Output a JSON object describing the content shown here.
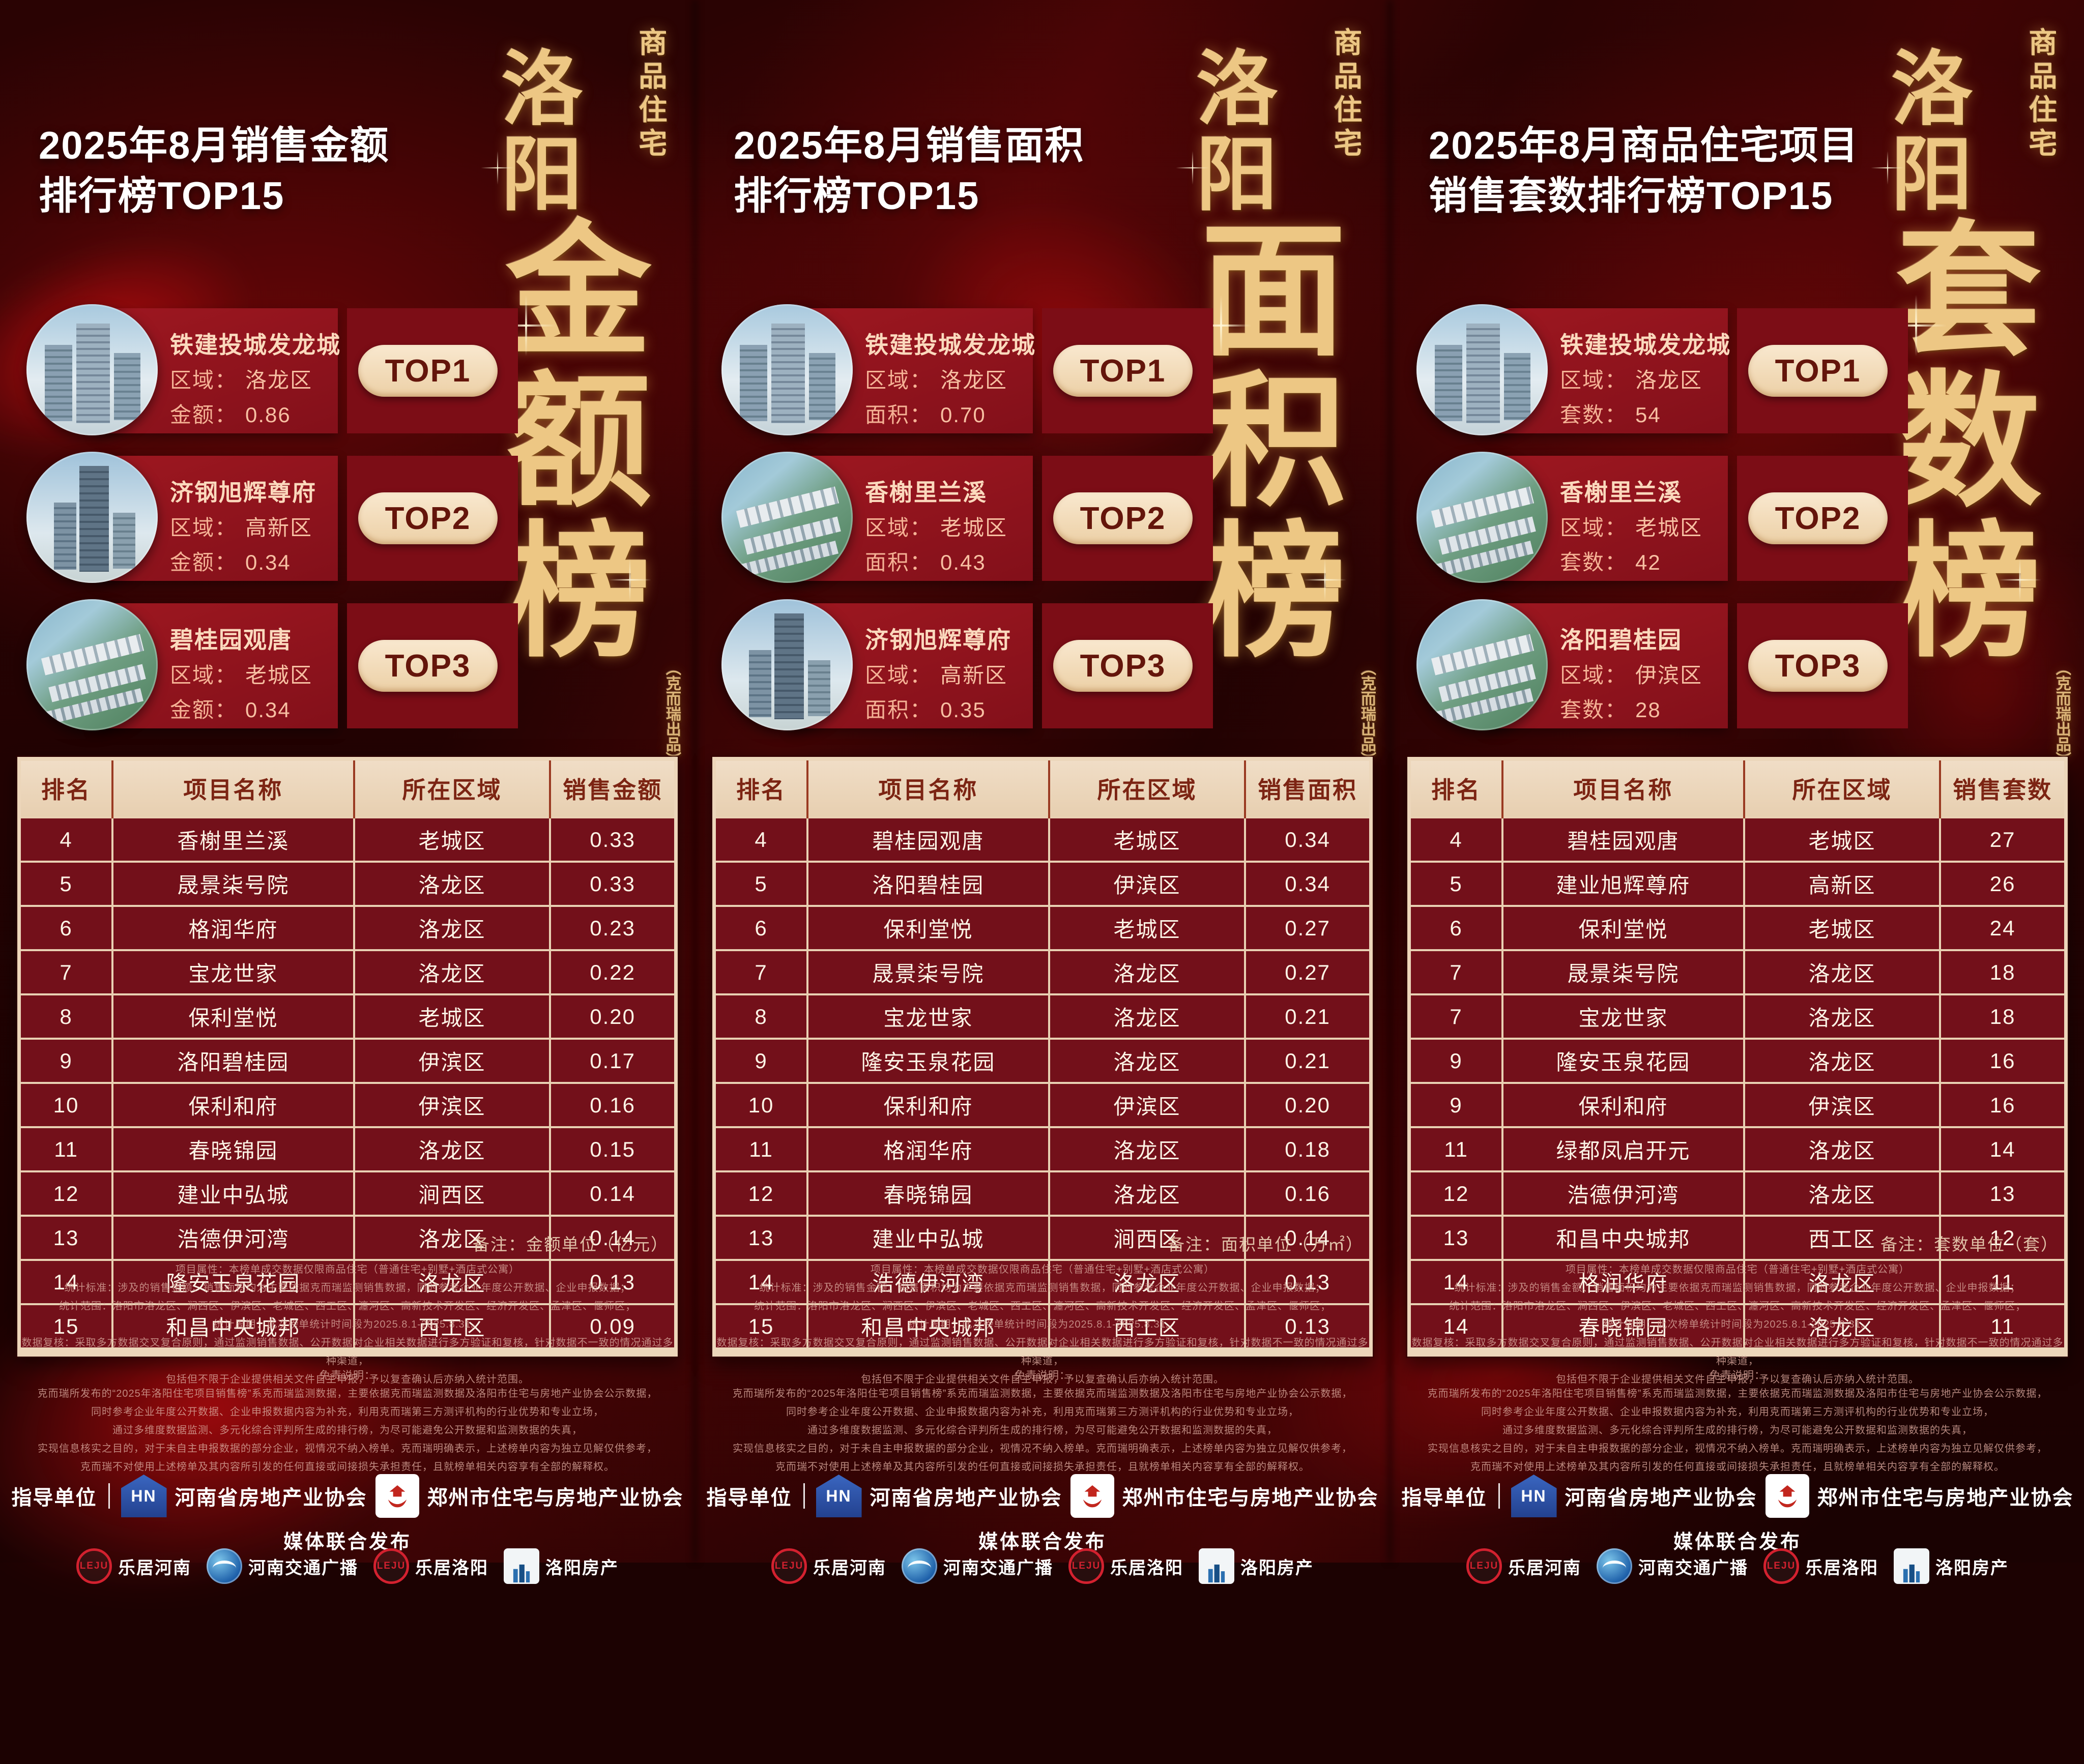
{
  "shared": {
    "brand_seal": "商品住宅",
    "city": "洛阳",
    "credit": "（克而瑞出品）",
    "stats_lines": [
      "项目属性：本榜单成交数据仅限商品住宅（普通住宅+别墅+酒店式公寓）",
      "统计标准：涉及的销售金额、销售面积均为主要依据克而瑞监测销售数据，同时参考企业年度公开数据、企业申报数据；",
      "统计范围：洛阳市洛龙区、涧西区、伊滨区、老城区、西工区、瀍河区、高新技术开发区、经济开发区、孟津区、偃师区；",
      "统计周期：此次榜单统计时间段为2025.8.1-2025.8.31。",
      "数据复核：采取多方数据交叉复合原则，通过监测销售数据、公开数据对企业相关数据进行多方验证和复核，针对数据不一致的情况通过多种渠道，",
      "包括但不限于企业提供相关文件自主申报，予以复查确认后亦纳入统计范围。"
    ],
    "disclaimer_title": "免责说明：",
    "disclaimer_lines": [
      "克而瑞所发布的“2025年洛阳住宅项目销售榜”系克而瑞监测数据，主要依据克而瑞监测数据及洛阳市住宅与房地产业协会公示数据，",
      "同时参考企业年度公开数据、企业申报数据内容为补充，利用克而瑞第三方测评机构的行业优势和专业立场，",
      "通过多维度数据监测、多元化综合评判所生成的排行榜，为尽可能避免公开数据和监测数据的失真，",
      "实现信息核实之目的，对于未自主申报数据的部分企业，视情况不纳入榜单。克而瑞明确表示，上述榜单内容为独立见解仅供参考，",
      "克而瑞不对使用上述榜单及其内容所引发的任何直接或间接损失承担责任，且就榜单相关内容享有全部的解释权。"
    ],
    "footer": {
      "guide_label": "指导单位",
      "org1_logo_text": "HN",
      "org1": "河南省房地产业协会",
      "org2": "郑州市住宅与房地产业协会",
      "media_label": "媒体联合发布",
      "media": [
        {
          "icon": "leju-logo",
          "logo_text": "LEJU",
          "label": "乐居河南"
        },
        {
          "icon": "henan-traffic-radio-logo",
          "label": "河南交通广播"
        },
        {
          "icon": "leju-logo",
          "logo_text": "LEJU",
          "label": "乐居洛阳"
        },
        {
          "icon": "luoyang-property-logo",
          "label": "洛阳房产"
        }
      ]
    },
    "colors": {
      "accent_cream": "#ecd6ba",
      "table_maroon": "#73101a",
      "card_red": "#97151e",
      "gold": "#edc784"
    }
  },
  "panels": [
    {
      "id": "sales-amount",
      "title_lines": [
        "2025年8月销售金额",
        "排行榜TOP15"
      ],
      "art_word": "金额榜",
      "tops": [
        {
          "badge": "TOP1",
          "name": "铁建投城发龙城",
          "region_label": "区域：",
          "region": "洛龙区",
          "value_label": "金额：",
          "value": "0.86",
          "photo": "towers-rendering"
        },
        {
          "badge": "TOP2",
          "name": "济钢旭辉尊府",
          "region_label": "区域：",
          "region": "高新区",
          "value_label": "金额：",
          "value": "0.34",
          "photo": "highrise-rendering"
        },
        {
          "badge": "TOP3",
          "name": "碧桂园观唐",
          "region_label": "区域：",
          "region": "老城区",
          "value_label": "金额：",
          "value": "0.34",
          "photo": "aerial-green-rendering"
        }
      ],
      "table": {
        "headers": [
          "排名",
          "项目名称",
          "所在区域",
          "销售金额"
        ],
        "rows": [
          [
            "4",
            "香榭里兰溪",
            "老城区",
            "0.33"
          ],
          [
            "5",
            "晟景柒号院",
            "洛龙区",
            "0.33"
          ],
          [
            "6",
            "格润华府",
            "洛龙区",
            "0.23"
          ],
          [
            "7",
            "宝龙世家",
            "洛龙区",
            "0.22"
          ],
          [
            "8",
            "保利堂悦",
            "老城区",
            "0.20"
          ],
          [
            "9",
            "洛阳碧桂园",
            "伊滨区",
            "0.17"
          ],
          [
            "10",
            "保利和府",
            "伊滨区",
            "0.16"
          ],
          [
            "11",
            "春晓锦园",
            "洛龙区",
            "0.15"
          ],
          [
            "12",
            "建业中弘城",
            "涧西区",
            "0.14"
          ],
          [
            "13",
            "浩德伊河湾",
            "洛龙区",
            "0.14"
          ],
          [
            "14",
            "隆安玉泉花园",
            "洛龙区",
            "0.13"
          ],
          [
            "15",
            "和昌中央城邦",
            "西工区",
            "0.09"
          ]
        ]
      },
      "unit_note": "备注：金额单位（亿元）"
    },
    {
      "id": "sales-area",
      "title_lines": [
        "2025年8月销售面积",
        "排行榜TOP15"
      ],
      "art_word": "面积榜",
      "tops": [
        {
          "badge": "TOP1",
          "name": "铁建投城发龙城",
          "region_label": "区域：",
          "region": "洛龙区",
          "value_label": "面积：",
          "value": "0.70",
          "photo": "towers-rendering"
        },
        {
          "badge": "TOP2",
          "name": "香榭里兰溪",
          "region_label": "区域：",
          "region": "老城区",
          "value_label": "面积：",
          "value": "0.43",
          "photo": "aerial-green-rendering"
        },
        {
          "badge": "TOP3",
          "name": "济钢旭辉尊府",
          "region_label": "区域：",
          "region": "高新区",
          "value_label": "面积：",
          "value": "0.35",
          "photo": "highrise-rendering"
        }
      ],
      "table": {
        "headers": [
          "排名",
          "项目名称",
          "所在区域",
          "销售面积"
        ],
        "rows": [
          [
            "4",
            "碧桂园观唐",
            "老城区",
            "0.34"
          ],
          [
            "5",
            "洛阳碧桂园",
            "伊滨区",
            "0.34"
          ],
          [
            "6",
            "保利堂悦",
            "老城区",
            "0.27"
          ],
          [
            "7",
            "晟景柒号院",
            "洛龙区",
            "0.27"
          ],
          [
            "8",
            "宝龙世家",
            "洛龙区",
            "0.21"
          ],
          [
            "9",
            "隆安玉泉花园",
            "洛龙区",
            "0.21"
          ],
          [
            "10",
            "保利和府",
            "伊滨区",
            "0.20"
          ],
          [
            "11",
            "格润华府",
            "洛龙区",
            "0.18"
          ],
          [
            "12",
            "春晓锦园",
            "洛龙区",
            "0.16"
          ],
          [
            "13",
            "建业中弘城",
            "涧西区",
            "0.14"
          ],
          [
            "14",
            "浩德伊河湾",
            "洛龙区",
            "0.13"
          ],
          [
            "15",
            "和昌中央城邦",
            "西工区",
            "0.13"
          ]
        ]
      },
      "unit_note": "备注：面积单位（万㎡）"
    },
    {
      "id": "sales-units",
      "title_lines": [
        "2025年8月商品住宅项目",
        "销售套数排行榜TOP15"
      ],
      "art_word": "套数榜",
      "tops": [
        {
          "badge": "TOP1",
          "name": "铁建投城发龙城",
          "region_label": "区域：",
          "region": "洛龙区",
          "value_label": "套数：",
          "value": "54",
          "photo": "towers-rendering"
        },
        {
          "badge": "TOP2",
          "name": "香榭里兰溪",
          "region_label": "区域：",
          "region": "老城区",
          "value_label": "套数：",
          "value": "42",
          "photo": "aerial-green-rendering"
        },
        {
          "badge": "TOP3",
          "name": "洛阳碧桂园",
          "region_label": "区域：",
          "region": "伊滨区",
          "value_label": "套数：",
          "value": "28",
          "photo": "aerial-green-rendering"
        }
      ],
      "table": {
        "headers": [
          "排名",
          "项目名称",
          "所在区域",
          "销售套数"
        ],
        "rows": [
          [
            "4",
            "碧桂园观唐",
            "老城区",
            "27"
          ],
          [
            "5",
            "建业旭辉尊府",
            "高新区",
            "26"
          ],
          [
            "6",
            "保利堂悦",
            "老城区",
            "24"
          ],
          [
            "7",
            "晟景柒号院",
            "洛龙区",
            "18"
          ],
          [
            "7",
            "宝龙世家",
            "洛龙区",
            "18"
          ],
          [
            "9",
            "隆安玉泉花园",
            "洛龙区",
            "16"
          ],
          [
            "9",
            "保利和府",
            "伊滨区",
            "16"
          ],
          [
            "11",
            "绿都凤启开元",
            "洛龙区",
            "14"
          ],
          [
            "12",
            "浩德伊河湾",
            "洛龙区",
            "13"
          ],
          [
            "13",
            "和昌中央城邦",
            "西工区",
            "12"
          ],
          [
            "14",
            "格润华府",
            "洛龙区",
            "11"
          ],
          [
            "14",
            "春晓锦园",
            "洛龙区",
            "11"
          ]
        ]
      },
      "unit_note": "备注：套数单位（套）"
    }
  ]
}
